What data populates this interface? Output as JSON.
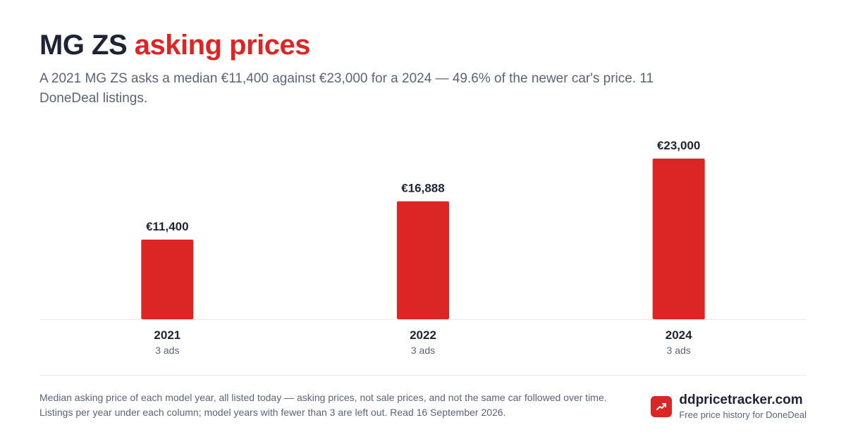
{
  "header": {
    "title_main": "MG ZS",
    "title_accent": "asking prices",
    "subtitle": "A 2021 MG ZS asks a median €11,400 against €23,000 for a 2024 — 49.6% of the newer car's price. 11 DoneDeal listings."
  },
  "chart_data": {
    "type": "bar",
    "categories": [
      "2021",
      "2022",
      "2024"
    ],
    "values": [
      11400,
      16888,
      23000
    ],
    "value_labels": [
      "€11,400",
      "€16,888",
      "€23,000"
    ],
    "counts": [
      "3 ads",
      "3 ads",
      "3 ads"
    ],
    "ylim": [
      0,
      23000
    ],
    "grid": false,
    "bar_color": "#dc2626"
  },
  "footer": {
    "note": "Median asking price of each model year, all listed today — asking prices, not sale prices, and not the same car followed over time. Listings per year under each column; model years with fewer than 3 are left out. Read 16 September 2026.",
    "brand_name": "ddpricetracker.com",
    "brand_tagline": "Free price history for DoneDeal",
    "brand_icon": "trend-up-icon"
  }
}
